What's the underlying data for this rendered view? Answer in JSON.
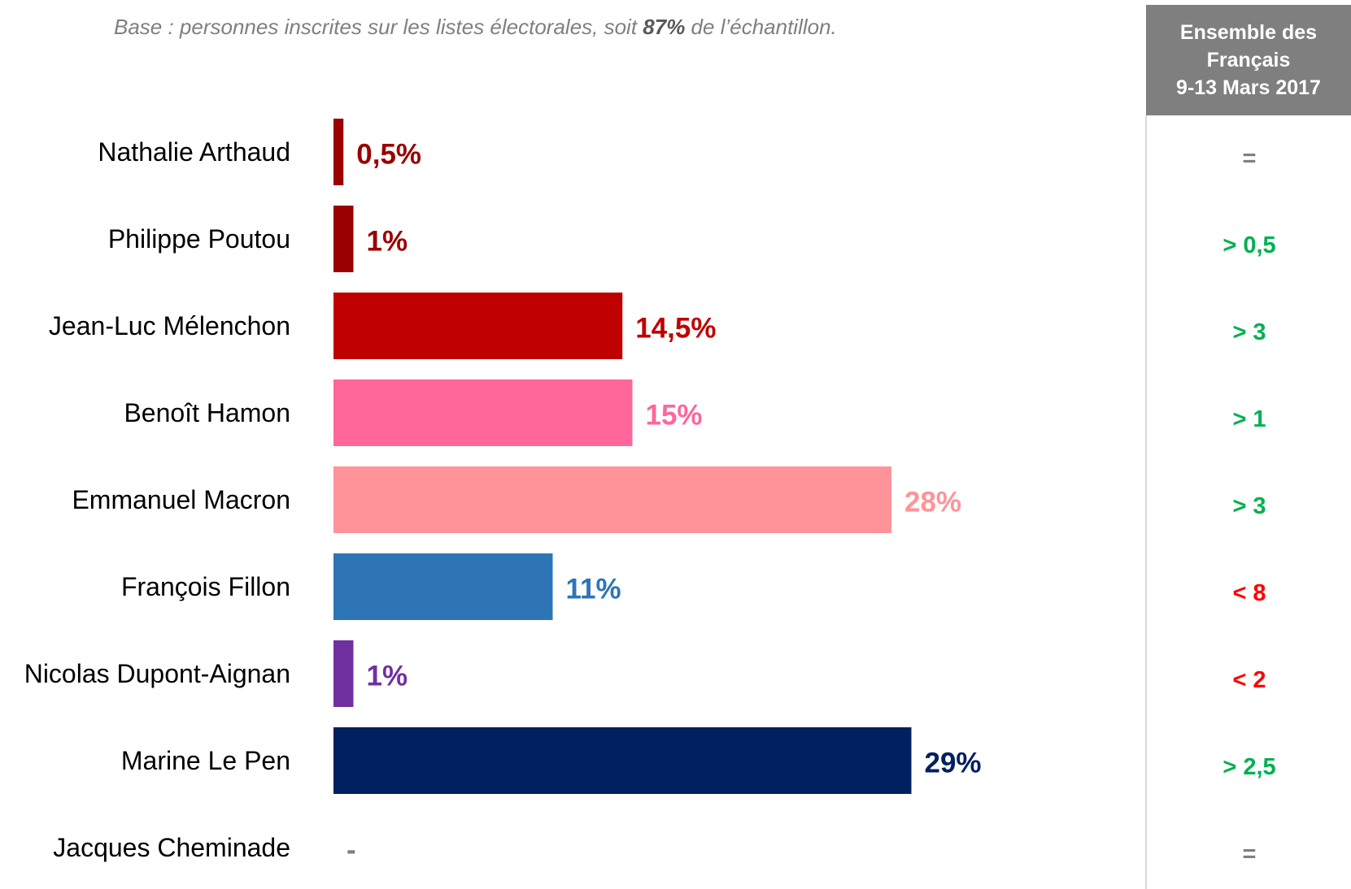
{
  "note": {
    "prefix": "Base : personnes inscrites sur les listes électorales, soit ",
    "emphasis": "87%",
    "suffix": " de l’échantillon."
  },
  "side_column": {
    "header_lines": [
      "Ensemble des",
      "Français",
      "9-13 Mars 2017"
    ]
  },
  "chart_data": {
    "type": "bar",
    "orientation": "horizontal",
    "categories": [
      "Nathalie Arthaud",
      "Philippe Poutou",
      "Jean-Luc Mélenchon",
      "Benoît Hamon",
      "Emmanuel Macron",
      "François Fillon",
      "Nicolas Dupont-Aignan",
      "Marine Le Pen",
      "Jacques Cheminade"
    ],
    "values": [
      0.5,
      1,
      14.5,
      15,
      28,
      11,
      1,
      29,
      null
    ],
    "value_labels": [
      "0,5%",
      "1%",
      "14,5%",
      "15%",
      "28%",
      "11%",
      "1%",
      "29%",
      "-"
    ],
    "colors": [
      "#9b0000",
      "#9b0000",
      "#c00000",
      "#ff6699",
      "#ff9399",
      "#2e75b6",
      "#7030a0",
      "#002060",
      "#7f7f7f"
    ],
    "comparison": [
      "=",
      "> 0,5",
      "> 3",
      "> 1",
      "> 3",
      "< 8",
      "< 2",
      "> 2,5",
      "="
    ],
    "comparison_colors": [
      "#7f7f7f",
      "#00b050",
      "#00b050",
      "#00b050",
      "#00b050",
      "#ff0000",
      "#ff0000",
      "#00b050",
      "#7f7f7f"
    ],
    "xlim": [
      0,
      30
    ],
    "grid": false,
    "legend": "none"
  }
}
